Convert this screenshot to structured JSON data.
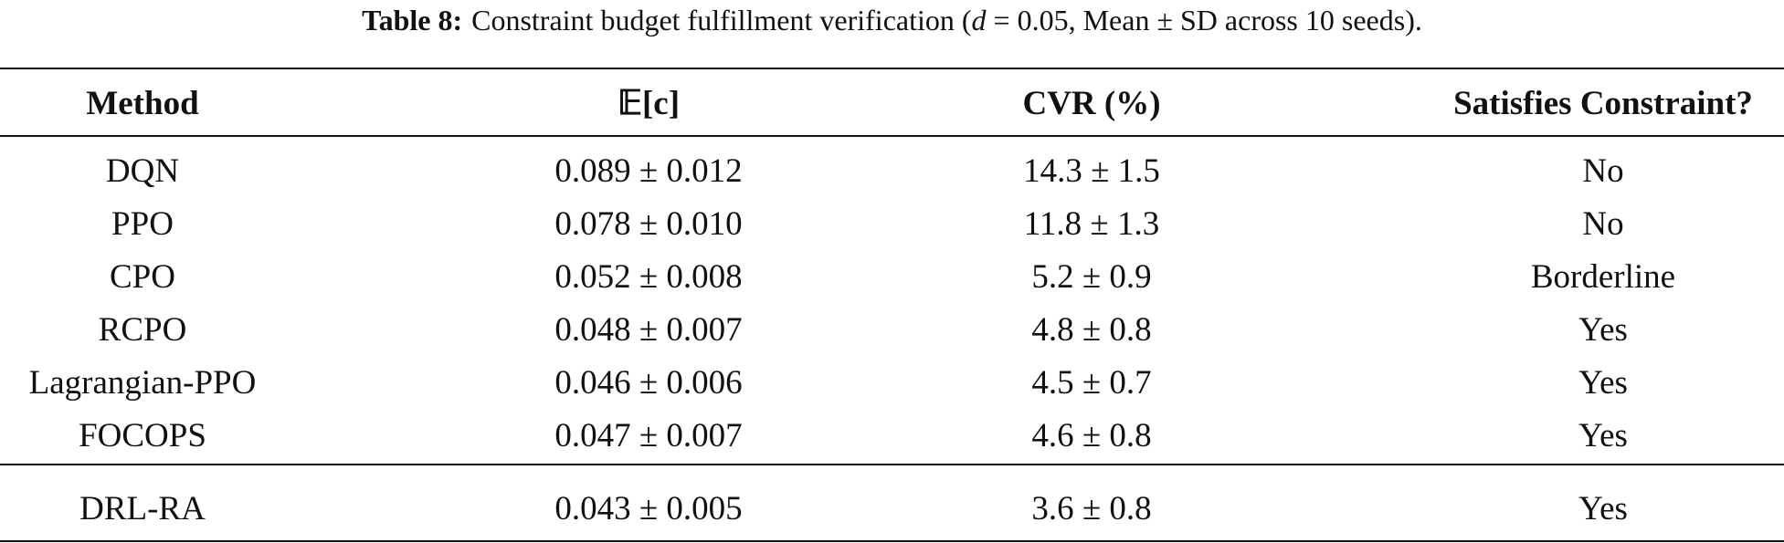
{
  "caption": {
    "label": "Table 8:",
    "text_before": "Constraint budget fulfillment verification (",
    "variable": "d",
    "text_after": " = 0.05, Mean ± SD across 10 seeds)."
  },
  "table": {
    "header": [
      "Method",
      "𝔼[c]",
      "CVR (%)",
      "Satisfies Constraint?"
    ],
    "rows": [
      [
        "DQN",
        "0.089 ± 0.012",
        "14.3 ± 1.5",
        "No"
      ],
      [
        "PPO",
        "0.078 ± 0.010",
        "11.8 ± 1.3",
        "No"
      ],
      [
        "CPO",
        "0.052 ± 0.008",
        "5.2 ± 0.9",
        "Borderline"
      ],
      [
        "RCPO",
        "0.048 ± 0.007",
        "4.8 ± 0.8",
        "Yes"
      ],
      [
        "Lagrangian-PPO",
        "0.046 ± 0.006",
        "4.5 ± 0.7",
        "Yes"
      ],
      [
        "FOCOPS",
        "0.047 ± 0.007",
        "4.6 ± 0.8",
        "Yes"
      ],
      [
        "DRL-RA",
        "0.043 ± 0.005",
        "3.6 ± 0.8",
        "Yes"
      ]
    ]
  }
}
